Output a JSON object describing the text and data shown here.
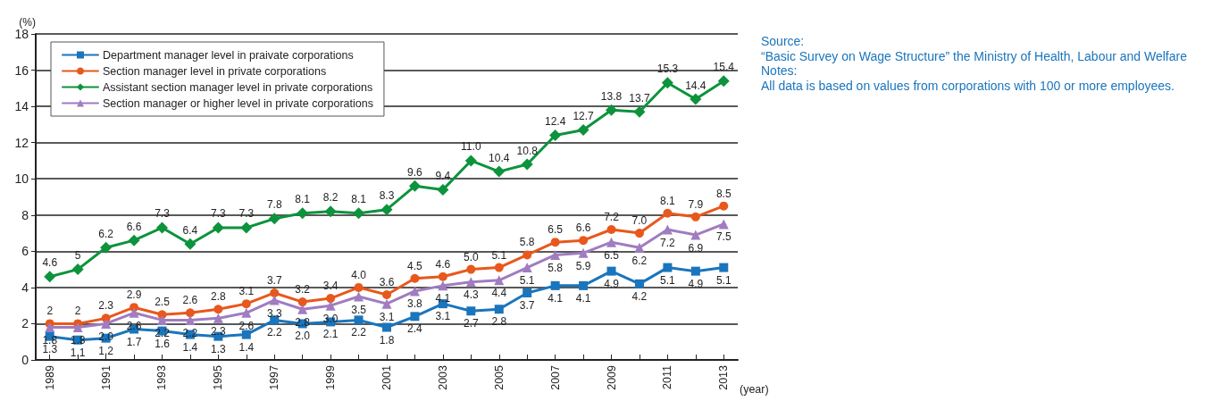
{
  "chart_data": {
    "type": "line",
    "xlabel": "(year)",
    "ylabel": "(%)",
    "categories": [
      "1989",
      null,
      "1991",
      null,
      "1993",
      null,
      "1995",
      null,
      "1997",
      null,
      "1999",
      null,
      "2001",
      null,
      "2003",
      null,
      "2005",
      null,
      "2007",
      null,
      "2009",
      null,
      "2011",
      null,
      "2013"
    ],
    "series": [
      {
        "name": "Department manager level in praivate corporations",
        "color": "#1a75bc",
        "marker": "square",
        "values": [
          1.3,
          1.1,
          1.2,
          1.7,
          1.6,
          1.4,
          1.3,
          1.4,
          2.2,
          2.0,
          2.1,
          2.2,
          1.8,
          2.4,
          3.1,
          2.7,
          2.8,
          3.7,
          4.1,
          4.1,
          4.9,
          4.2,
          5.1,
          4.9,
          5.1
        ],
        "value_labels": [
          "1.3",
          "1.1",
          "1.2",
          "1.7",
          "1.6",
          "1.4",
          "1.3",
          "1.4",
          "2.2",
          "2.0",
          "2.1",
          "2.2",
          "1.8",
          "2.4",
          "3.1",
          "2.7",
          "2.8",
          "3.7",
          "4.1",
          "4.1",
          "4.9",
          "4.2",
          "5.1",
          "4.9",
          "5.1"
        ]
      },
      {
        "name": "Section manager level in private corporations",
        "color": "#e8581c",
        "marker": "circle",
        "values": [
          2,
          2,
          2.3,
          2.9,
          2.5,
          2.6,
          2.8,
          3.1,
          3.7,
          3.2,
          3.4,
          4.0,
          3.6,
          4.5,
          4.6,
          5.0,
          5.1,
          5.8,
          6.5,
          6.6,
          7.2,
          7.0,
          8.1,
          7.9,
          8.5
        ],
        "value_labels": [
          "2",
          "2",
          "2.3",
          "2.9",
          "2.5",
          "2.6",
          "2.8",
          "3.1",
          "3.7",
          "3.2",
          "3.4",
          "4.0",
          "3.6",
          "4.5",
          "4.6",
          "5.0",
          "5.1",
          "5.8",
          "6.5",
          "6.6",
          "7.2",
          "7.0",
          "8.1",
          "7.9",
          "8.5"
        ]
      },
      {
        "name": "Assistant section manager level in private corporations",
        "color": "#0c933c",
        "marker": "diamond",
        "values": [
          4.6,
          5,
          6.2,
          6.6,
          7.3,
          6.4,
          7.3,
          7.3,
          7.8,
          8.1,
          8.2,
          8.1,
          8.3,
          9.6,
          9.4,
          11.0,
          10.4,
          10.8,
          12.4,
          12.7,
          13.8,
          13.7,
          15.3,
          14.4,
          15.4
        ],
        "value_labels": [
          "4.6",
          "5",
          "6.2",
          "6.6",
          "7.3",
          "6.4",
          "7.3",
          "7.3",
          "7.8",
          "8.1",
          "8.2",
          "8.1",
          "8.3",
          "9.6",
          "9.4",
          "11.0",
          "10.4",
          "10.8",
          "12.4",
          "12.7",
          "13.8",
          "13.7",
          "15.3",
          "14.4",
          "15.4"
        ]
      },
      {
        "name": "Section manager or higher level in private corporations",
        "color": "#a07cc0",
        "marker": "triangle",
        "values": [
          1.8,
          1.8,
          2.0,
          2.6,
          2.2,
          2.2,
          2.3,
          2.6,
          3.3,
          2.8,
          3.0,
          3.5,
          3.1,
          3.8,
          4.1,
          4.3,
          4.4,
          5.1,
          5.8,
          5.9,
          6.5,
          6.2,
          7.2,
          6.9,
          7.5
        ],
        "value_labels": [
          "1.8",
          "1.8",
          "2.0",
          "2.6",
          "2.2",
          "2.2",
          "2.3",
          "2.6",
          "3.3",
          "2.8",
          "3.0",
          "3.5",
          "3.1",
          "3.8",
          "4.1",
          "4.3",
          "4.4",
          "5.1",
          "5.8",
          "5.9",
          "6.5",
          "6.2",
          "7.2",
          "6.9",
          "7.5"
        ]
      }
    ],
    "ylim": [
      0,
      18
    ],
    "yticks": [
      0,
      2,
      4,
      6,
      8,
      10,
      12,
      14,
      16,
      18
    ],
    "grid": "y",
    "legend": "top left",
    "annotations": [
      "Source:",
      "“Basic Survey on Wage Structure” the Ministry of Health, Labour and Welfare",
      "Notes:",
      "All data is based on values from corporations with 100 or more employees."
    ]
  }
}
